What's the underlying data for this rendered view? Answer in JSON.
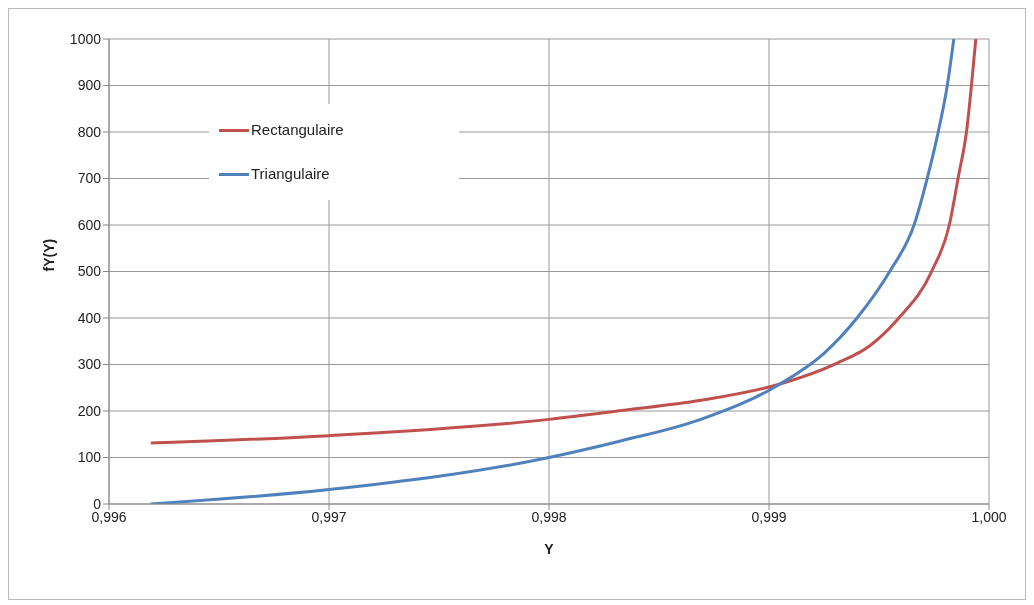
{
  "chart_data": {
    "type": "line",
    "xlabel": "Y",
    "ylabel": "fY(Y)",
    "series": [
      {
        "name": "Rectangulaire",
        "color": "#c0504d",
        "x": [
          0.99619,
          0.997,
          0.998,
          0.99833,
          0.99869,
          0.99905,
          0.99931,
          0.99946,
          0.99959,
          0.99974,
          0.99982,
          0.99986,
          0.9999,
          0.99992,
          0.99994
        ],
        "values": [
          131,
          147,
          182,
          201,
          223,
          258,
          303,
          341,
          400,
          501,
          601,
          702,
          809,
          899,
          1000
        ]
      },
      {
        "name": "Triangulaire",
        "color": "#4f81bd",
        "x": [
          0.99619,
          0.997,
          0.998,
          0.99833,
          0.99869,
          0.99905,
          0.99925,
          0.9994,
          0.99955,
          0.99966,
          0.99972,
          0.99977,
          0.99981,
          0.99984
        ],
        "values": [
          0,
          31,
          100,
          136,
          182,
          258,
          324,
          400,
          501,
          601,
          702,
          802,
          899,
          1000
        ]
      }
    ],
    "xlim": [
      0.996,
      1.0
    ],
    "xticks": [
      {
        "value": 0.996,
        "label": "0,996"
      },
      {
        "value": 0.997,
        "label": "0,997"
      },
      {
        "value": 0.998,
        "label": "0,998"
      },
      {
        "value": 0.999,
        "label": "0,999"
      },
      {
        "value": 1.0,
        "label": "1,000"
      }
    ],
    "ylim": [
      0,
      1000
    ],
    "yticks": [
      0,
      100,
      200,
      300,
      400,
      500,
      600,
      700,
      800,
      900,
      1000
    ],
    "grid": true,
    "legend": "top left",
    "marker": "none",
    "line_style": "solid"
  }
}
